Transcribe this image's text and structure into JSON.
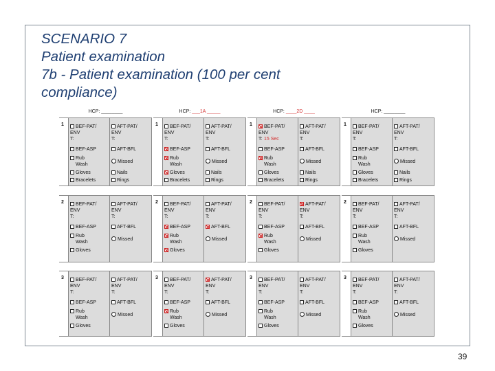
{
  "title": {
    "line1": "SCENARIO 7",
    "line2": "Patient examination",
    "line3": "7b - Patient examination (100 per cent",
    "line4": "compliance)"
  },
  "hcp_label": "HCP:",
  "columns": [
    {
      "hcp_value": "________",
      "value_red": false
    },
    {
      "hcp_value": "___1A _____",
      "value_red": true
    },
    {
      "hcp_value": "____2D ____",
      "value_red": true
    },
    {
      "hcp_value": "________",
      "value_red": false
    }
  ],
  "labels": {
    "bef_pat": "BEF-PAT/",
    "aft_pat": "AFT-PAT/",
    "env": "ENV",
    "t": "T:",
    "bef_asp": "BEF-ASP",
    "aft_bfl": "AFT-BFL",
    "rub": "Rub",
    "wash": "Wash",
    "missed": "Missed",
    "gloves": "Gloves",
    "bracelets": "Bracelets",
    "nails": "Nails",
    "rings": "Rings",
    "timing": "15 Sec"
  },
  "page_number": "39"
}
